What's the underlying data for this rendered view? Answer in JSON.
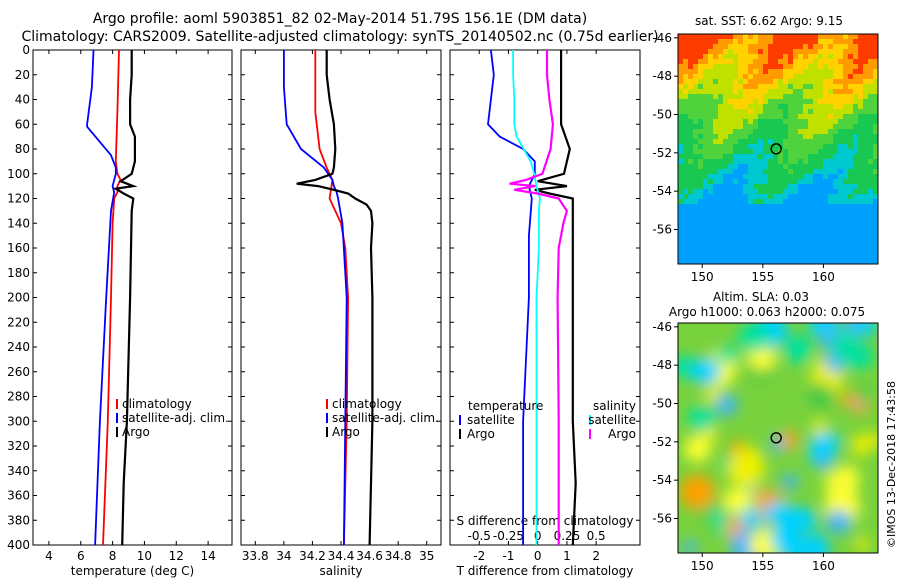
{
  "header": {
    "title_line1": "Argo profile: aoml 5903851_82 02-May-2014 51.79S 156.1E (DM data)",
    "title_line2": "Climatology: CARS2009. Satellite-adjusted climatology: synTS_20140502.nc (0.75d earlier)"
  },
  "colors": {
    "climatology": "#ff0000",
    "satellite": "#0000ff",
    "argo": "#000000",
    "satellite_salinity": "#00ffff",
    "climatology_salinity": "#ff00ff"
  },
  "chart_data": [
    {
      "type": "line",
      "id": "temperature",
      "xlabel": "temperature (deg C)",
      "ylabel": "",
      "xlim": [
        3,
        15.5
      ],
      "ylim": [
        400,
        0
      ],
      "xticks": [
        4,
        6,
        8,
        10,
        12,
        14
      ],
      "yticks": [
        0,
        20,
        40,
        60,
        80,
        100,
        120,
        140,
        160,
        180,
        200,
        220,
        240,
        260,
        280,
        300,
        320,
        340,
        360,
        380,
        400
      ],
      "legend": [
        "climatology",
        "satellite-adj. clim.",
        "Argo"
      ],
      "series": [
        {
          "name": "climatology",
          "depth": [
            0,
            50,
            90,
            100,
            105,
            110,
            115,
            120,
            140,
            200,
            300,
            400
          ],
          "values": [
            8.4,
            8.3,
            8.2,
            8.3,
            8.5,
            8.3,
            8.3,
            8.1,
            8.0,
            7.9,
            7.7,
            7.4
          ]
        },
        {
          "name": "satellite-adj. clim.",
          "depth": [
            0,
            30,
            60,
            62,
            85,
            95,
            100,
            110,
            115,
            130,
            200,
            300,
            400
          ],
          "values": [
            6.8,
            6.7,
            6.4,
            6.4,
            7.9,
            8.2,
            8.2,
            8.0,
            8.1,
            7.9,
            7.6,
            7.2,
            6.9
          ]
        },
        {
          "name": "Argo",
          "depth": [
            0,
            20,
            40,
            60,
            70,
            90,
            100,
            106,
            110,
            112,
            116,
            120,
            130,
            200,
            300,
            350,
            400
          ],
          "values": [
            9.2,
            9.2,
            9.1,
            9.1,
            9.4,
            9.4,
            9.2,
            8.5,
            9.3,
            8.2,
            8.7,
            9.3,
            9.2,
            9.1,
            8.9,
            8.7,
            8.6
          ]
        }
      ]
    },
    {
      "type": "line",
      "id": "salinity",
      "xlabel": "salinity",
      "ylabel": "",
      "xlim": [
        33.7,
        35.1
      ],
      "ylim": [
        400,
        0
      ],
      "xticks": [
        33.8,
        34,
        34.2,
        34.4,
        34.6,
        34.8,
        35
      ],
      "legend": [
        "climatology",
        "satellite-adj. clim.",
        "Argo"
      ],
      "series": [
        {
          "name": "climatology",
          "depth": [
            0,
            50,
            80,
            95,
            105,
            120,
            130,
            140,
            160,
            200,
            300,
            400
          ],
          "values": [
            34.22,
            34.22,
            34.25,
            34.3,
            34.34,
            34.32,
            34.36,
            34.4,
            34.43,
            34.45,
            34.44,
            34.42
          ]
        },
        {
          "name": "satellite-adj. clim.",
          "depth": [
            0,
            30,
            60,
            80,
            95,
            105,
            110,
            115,
            120,
            140,
            200,
            300,
            400
          ],
          "values": [
            34.0,
            34.0,
            34.02,
            34.12,
            34.28,
            34.34,
            34.35,
            34.37,
            34.38,
            34.41,
            34.44,
            34.43,
            34.42
          ]
        },
        {
          "name": "Argo",
          "depth": [
            0,
            20,
            40,
            60,
            80,
            95,
            100,
            105,
            108,
            110,
            113,
            116,
            120,
            125,
            130,
            140,
            160,
            200,
            300,
            400
          ],
          "values": [
            34.3,
            34.3,
            34.32,
            34.35,
            34.36,
            34.35,
            34.34,
            34.22,
            34.09,
            34.24,
            34.35,
            34.45,
            34.5,
            34.58,
            34.61,
            34.62,
            34.61,
            34.62,
            34.62,
            34.6
          ]
        }
      ]
    },
    {
      "type": "line",
      "id": "difference",
      "xlabel": "T difference from climatology",
      "xlabel_top": "S difference from climatology",
      "xlim": [
        -3,
        3.5
      ],
      "ylim": [
        400,
        0
      ],
      "xticks": [
        -2,
        -1,
        0,
        1,
        2
      ],
      "xtick_labels": [
        "-2",
        "-1",
        "0",
        "1",
        "2"
      ],
      "s_xlim": [
        -0.75,
        0.875
      ],
      "s_xticks": [
        -0.5,
        -0.25,
        0,
        0.25,
        0.5
      ],
      "s_xtick_labels": [
        "-0.5",
        "-0.25",
        "0",
        "0.25",
        "0.5"
      ],
      "legend_left_title": "temperature",
      "legend_right_title": "salinity",
      "legend": [
        "satellite",
        "Argo"
      ],
      "series": [
        {
          "name": "T satellite",
          "depth": [
            0,
            20,
            40,
            60,
            70,
            80,
            90,
            100,
            110,
            120,
            150,
            200,
            300,
            400
          ],
          "values": [
            -1.6,
            -1.5,
            -1.6,
            -1.7,
            -1.3,
            -0.5,
            -0.1,
            -0.1,
            -0.3,
            -0.2,
            -0.3,
            -0.3,
            -0.5,
            -0.5
          ]
        },
        {
          "name": "T Argo",
          "depth": [
            0,
            40,
            60,
            80,
            100,
            106,
            110,
            113,
            116,
            120,
            140,
            200,
            300,
            350,
            400
          ],
          "values": [
            0.8,
            0.8,
            0.8,
            1.1,
            0.9,
            0.0,
            1.0,
            -0.1,
            0.4,
            1.2,
            1.2,
            1.2,
            1.2,
            1.3,
            1.2
          ]
        },
        {
          "name": "S satellite",
          "depth": [
            0,
            20,
            40,
            60,
            70,
            90,
            100,
            110,
            120,
            130,
            160,
            200,
            300,
            400
          ],
          "values": [
            -0.21,
            -0.21,
            -0.2,
            -0.2,
            -0.18,
            -0.06,
            -0.03,
            -0.01,
            0.02,
            0.01,
            0.01,
            -0.01,
            -0.01,
            -0.01
          ]
        },
        {
          "name": "S Argo",
          "depth": [
            0,
            20,
            40,
            60,
            80,
            100,
            105,
            108,
            110,
            113,
            116,
            120,
            130,
            140,
            160,
            200,
            300,
            400
          ],
          "values": [
            0.08,
            0.08,
            0.1,
            0.13,
            0.11,
            0.04,
            -0.1,
            -0.24,
            -0.02,
            -0.2,
            0.0,
            0.18,
            0.25,
            0.22,
            0.18,
            0.17,
            0.18,
            0.18
          ]
        }
      ]
    },
    {
      "type": "heatmap",
      "id": "sst_map",
      "title": "sat. SST: 6.62 Argo: 9.15",
      "xlim": [
        148,
        164.5
      ],
      "ylim": [
        -57.8,
        -45.8
      ],
      "xticks": [
        150,
        155,
        160
      ],
      "yticks": [
        -46,
        -48,
        -50,
        -52,
        -54,
        -56
      ],
      "argo_position": [
        156.1,
        -51.79
      ]
    },
    {
      "type": "heatmap",
      "id": "sla_map",
      "title_line1": "Altim. SLA: 0.03",
      "title_line2": "Argo h1000: 0.063 h2000: 0.075",
      "xlim": [
        148,
        164.5
      ],
      "ylim": [
        -57.8,
        -45.8
      ],
      "xticks": [
        150,
        155,
        160
      ],
      "yticks": [
        -46,
        -48,
        -50,
        -52,
        -54,
        -56
      ],
      "argo_position": [
        156.1,
        -51.79
      ]
    }
  ],
  "footer": {
    "stamp": "©IMOS 13-Dec-2018 17:43:58"
  }
}
